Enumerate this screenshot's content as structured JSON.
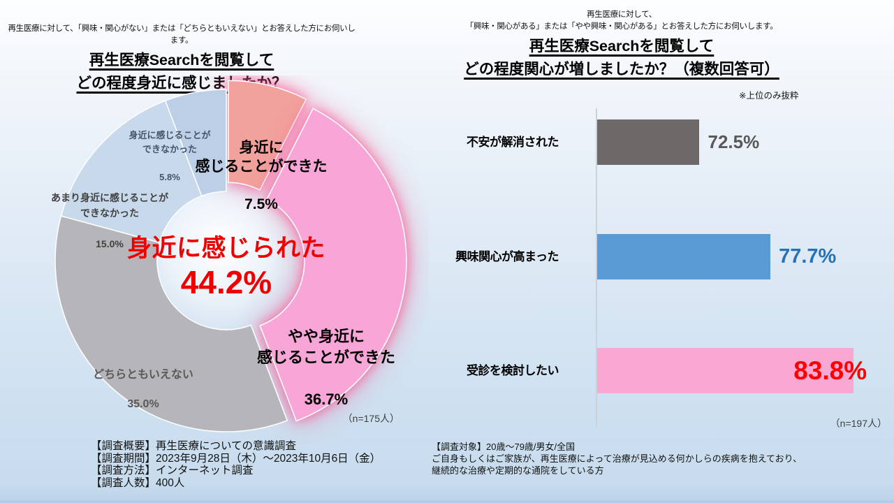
{
  "left_panel": {
    "note": "再生医療に対して、「興味・関心がない」または「どちらともいえない」とお答えした方にお伺いします。",
    "title_line1": "再生医療Searchを閲覧して",
    "title_line2": "どの程度身近に感じましたか？",
    "n_label": "（n=175人）"
  },
  "right_panel": {
    "note_line1": "再生医療に対して、",
    "note_line2": "「興味・関心がある」または「やや興味・関心がある」とお答えした方にお伺いします。",
    "title_line1": "再生医療Searchを閲覧して",
    "title_line2": "どの程度関心が増しましたか？（複数回答可）",
    "excerpt_note": "※上位のみ抜粋",
    "n_label": "（n=197人）"
  },
  "chart_data": [
    {
      "type": "pie",
      "donut": true,
      "title": "再生医療Searchを閲覧してどの程度身近に感じましたか？",
      "units": "%",
      "start_angle_deg": 0,
      "direction": "clockwise",
      "slices": [
        {
          "label": "身近に\n感じることができた",
          "value_label": "7.5%",
          "value": 7.5,
          "color": "#F2A29C",
          "exploded": true
        },
        {
          "label": "やや身近に\n感じることができた",
          "value_label": "36.7%",
          "value": 36.7,
          "color": "#F8A5D8",
          "exploded": true
        },
        {
          "label": "どちらともいえない",
          "value_label": "35.0%",
          "value": 35.0,
          "color": "#B5B5BA",
          "exploded": false
        },
        {
          "label": "あまり身近に感じることが\nできなかった",
          "value_label": "15.0%",
          "value": 15.0,
          "color": "#C8D9EC",
          "exploded": false
        },
        {
          "label": "身近に感じることが\nできなかった",
          "value_label": "5.8%",
          "value": 5.8,
          "color": "#BCCFE7",
          "exploded": false
        }
      ],
      "center_annotation": {
        "text": "身近に感じられた",
        "value_label": "44.2%",
        "color": "#EE0000"
      },
      "n": "（n=175人）"
    },
    {
      "type": "bar",
      "orientation": "horizontal",
      "title": "再生医療Searchを閲覧してどの程度関心が増しましたか？（複数回答可）",
      "units": "%",
      "categories": [
        "不安が解消された",
        "興味関心が高まった",
        "受診を検討したい"
      ],
      "values": [
        72.5,
        77.7,
        83.8
      ],
      "value_labels": [
        "72.5%",
        "77.7%",
        "83.8%"
      ],
      "bar_colors": [
        "#6E6969",
        "#5B9BD5",
        "#F9A7D3"
      ],
      "value_colors": [
        "#595959",
        "#2572B8",
        "#FE0000"
      ],
      "axis": {
        "min": 65,
        "max": 86.5,
        "gridlines": false,
        "axis_line_visible": true
      },
      "legend": "none",
      "n": "（n=197人）"
    }
  ],
  "survey_left": {
    "line1": "【調査概要】再生医療についての意識調査",
    "line2": "【調査期間】2023年9月28日（木）～2023年10月6日（金）",
    "line3": "【調査方法】インターネット調査",
    "line4": "【調査人数】400人"
  },
  "survey_right": {
    "line1": "【調査対象】20歳～79歳/男女/全国",
    "line2": "ご自身もしくはご家族が、再生医療によって治療が見込める何かしらの疾病を抱えており、",
    "line3": "継続的な治療や定期的な通院をしている方"
  }
}
